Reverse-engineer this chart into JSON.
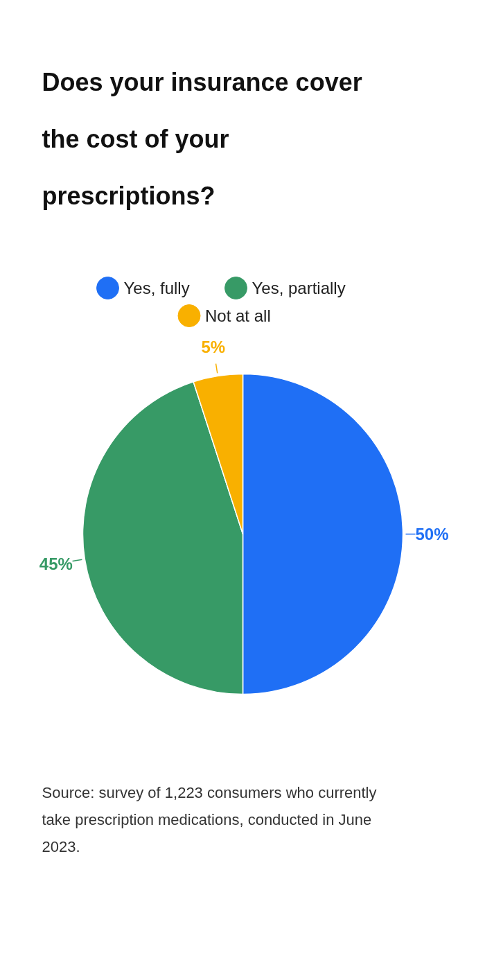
{
  "chart_data": {
    "type": "pie",
    "title": "Does your insurance cover the cost of your prescriptions?",
    "categories": [
      "Yes, fully",
      "Yes, partially",
      "Not at all"
    ],
    "values": [
      50,
      45,
      5
    ],
    "colors": [
      "#1f6ff5",
      "#379a66",
      "#f9b000"
    ],
    "value_labels": [
      "50%",
      "45%",
      "5%"
    ],
    "legend": "top",
    "annotations": [
      "Source: survey of 1,223 consumers who currently take prescription medications, conducted in June 2023."
    ]
  }
}
